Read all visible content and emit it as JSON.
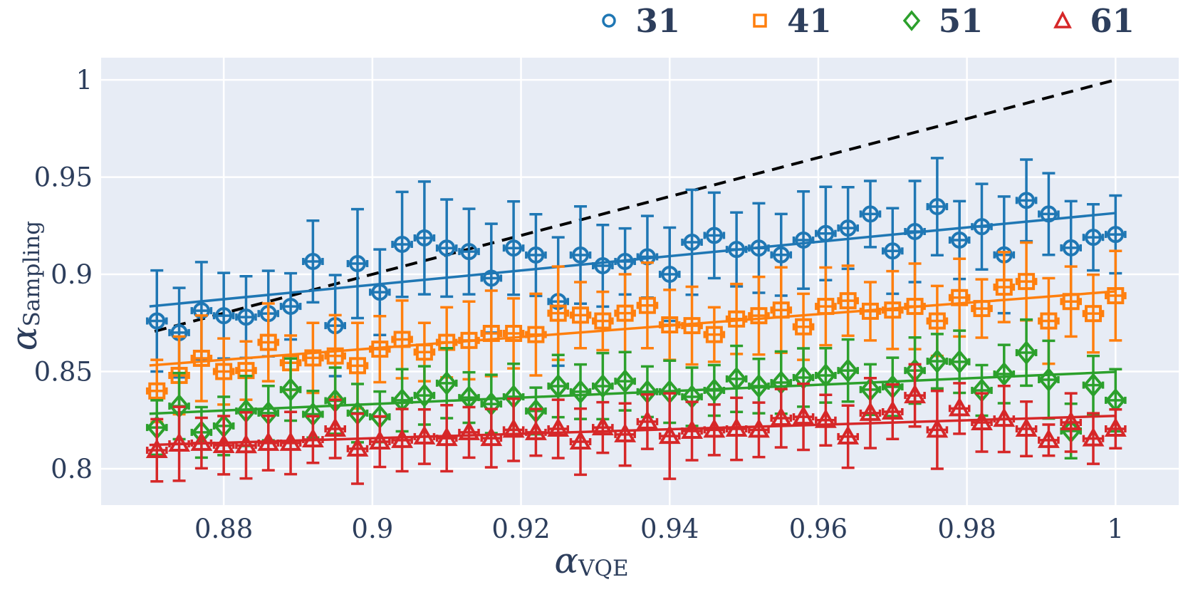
{
  "colors": {
    "series_blue": "#1f77b4",
    "series_orange": "#ff7f0e",
    "series_green": "#2ca02c",
    "series_red": "#d62728",
    "plot_background": "#e7ecf5",
    "gridline": "#ffffff",
    "text": "#2d3e5c",
    "identity_line": "#000000"
  },
  "chart_data": {
    "type": "scatter",
    "title": "",
    "xlabel": {
      "alpha": "α",
      "sub": "VQE"
    },
    "ylabel": {
      "alpha": "α",
      "sub": "Sampling"
    },
    "xlim": [
      0.8635,
      1.0085
    ],
    "ylim": [
      0.7813,
      1.0114
    ],
    "grid": true,
    "legend_position": "top-right-above-axes",
    "xticks": [
      0.88,
      0.9,
      0.92,
      0.94,
      0.96,
      0.98,
      1.0
    ],
    "xtick_labels": [
      "0.88",
      "0.9",
      "0.92",
      "0.94",
      "0.96",
      "0.98",
      "1"
    ],
    "yticks": [
      0.8,
      0.85,
      0.9,
      0.95,
      1.0
    ],
    "ytick_labels": [
      "0.8",
      "0.85",
      "0.9",
      "0.95",
      "1"
    ],
    "identity_line": {
      "style": "dashed",
      "x0": 0.8707,
      "y0": 0.8707,
      "x1": 1.0,
      "y1": 1.0
    },
    "x": [
      0.871,
      0.874,
      0.877,
      0.88,
      0.883,
      0.886,
      0.889,
      0.892,
      0.895,
      0.898,
      0.901,
      0.904,
      0.907,
      0.91,
      0.913,
      0.916,
      0.919,
      0.922,
      0.925,
      0.928,
      0.931,
      0.934,
      0.937,
      0.94,
      0.943,
      0.946,
      0.949,
      0.952,
      0.955,
      0.958,
      0.961,
      0.964,
      0.967,
      0.97,
      0.973,
      0.976,
      0.979,
      0.982,
      0.985,
      0.988,
      0.991,
      0.994,
      0.997,
      1.0
    ],
    "series": [
      {
        "name": "31",
        "marker": "circle",
        "color": "#1f77b4",
        "fit_line": {
          "x0": 0.87,
          "y0": 0.8835,
          "x1": 1.0,
          "y1": 0.9315
        },
        "y": [
          0.876,
          0.87,
          0.8813,
          0.8787,
          0.878,
          0.8798,
          0.8835,
          0.9066,
          0.8736,
          0.9055,
          0.8908,
          0.9154,
          0.9187,
          0.9135,
          0.9117,
          0.898,
          0.9135,
          0.9099,
          0.886,
          0.9099,
          0.9044,
          0.9066,
          0.909,
          0.9,
          0.9165,
          0.92,
          0.9128,
          0.9135,
          0.91,
          0.9176,
          0.921,
          0.9238,
          0.931,
          0.912,
          0.922,
          0.9348,
          0.9176,
          0.9245,
          0.91,
          0.938,
          0.931,
          0.9136,
          0.919,
          0.9205
        ],
        "yerr": [
          0.026,
          0.023,
          0.025,
          0.022,
          0.021,
          0.022,
          0.017,
          0.021,
          0.026,
          0.028,
          0.022,
          0.027,
          0.029,
          0.025,
          0.022,
          0.028,
          0.024,
          0.021,
          0.033,
          0.025,
          0.021,
          0.017,
          0.021,
          0.024,
          0.027,
          0.022,
          0.019,
          0.023,
          0.021,
          0.025,
          0.024,
          0.021,
          0.017,
          0.022,
          0.026,
          0.025,
          0.02,
          0.022,
          0.03,
          0.021,
          0.021,
          0.024,
          0.017,
          0.02
        ],
        "xerr": 0.0013
      },
      {
        "name": "41",
        "marker": "square",
        "color": "#ff7f0e",
        "fit_line": {
          "x0": 0.87,
          "y0": 0.8531,
          "x1": 1.0,
          "y1": 0.8912
        },
        "y": [
          0.84,
          0.848,
          0.8568,
          0.85,
          0.8505,
          0.865,
          0.8545,
          0.857,
          0.858,
          0.853,
          0.8615,
          0.8665,
          0.86,
          0.865,
          0.866,
          0.8696,
          0.8696,
          0.869,
          0.88,
          0.879,
          0.876,
          0.88,
          0.884,
          0.874,
          0.8736,
          0.869,
          0.877,
          0.8787,
          0.8816,
          0.873,
          0.8835,
          0.8864,
          0.881,
          0.8816,
          0.8835,
          0.876,
          0.888,
          0.8824,
          0.8934,
          0.8963,
          0.876,
          0.886,
          0.8798,
          0.889
        ],
        "yerr": [
          0.016,
          0.02,
          0.022,
          0.017,
          0.015,
          0.02,
          0.014,
          0.018,
          0.021,
          0.022,
          0.017,
          0.02,
          0.015,
          0.018,
          0.02,
          0.022,
          0.018,
          0.021,
          0.024,
          0.017,
          0.015,
          0.02,
          0.022,
          0.018,
          0.02,
          0.014,
          0.018,
          0.02,
          0.022,
          0.017,
          0.02,
          0.018,
          0.015,
          0.02,
          0.022,
          0.018,
          0.02,
          0.015,
          0.018,
          0.02,
          0.022,
          0.018,
          0.02,
          0.023
        ],
        "xerr": 0.0013
      },
      {
        "name": "51",
        "marker": "diamond",
        "color": "#2ca02c",
        "fit_line": {
          "x0": 0.87,
          "y0": 0.8283,
          "x1": 1.0,
          "y1": 0.8498
        },
        "y": [
          0.8212,
          0.8322,
          0.8187,
          0.822,
          0.8297,
          0.8286,
          0.8407,
          0.828,
          0.835,
          0.8286,
          0.8267,
          0.8352,
          0.8377,
          0.844,
          0.8366,
          0.8333,
          0.837,
          0.8297,
          0.8425,
          0.8396,
          0.8425,
          0.845,
          0.8396,
          0.8396,
          0.837,
          0.8403,
          0.8462,
          0.8425,
          0.8443,
          0.8469,
          0.848,
          0.8505,
          0.8407,
          0.8421,
          0.8505,
          0.8553,
          0.855,
          0.8403,
          0.8487,
          0.8597,
          0.8458,
          0.8194,
          0.843,
          0.8352
        ],
        "yerr": [
          0.014,
          0.017,
          0.013,
          0.015,
          0.018,
          0.014,
          0.016,
          0.012,
          0.017,
          0.015,
          0.013,
          0.016,
          0.015,
          0.018,
          0.013,
          0.015,
          0.017,
          0.012,
          0.016,
          0.014,
          0.017,
          0.015,
          0.013,
          0.016,
          0.015,
          0.013,
          0.017,
          0.014,
          0.016,
          0.015,
          0.014,
          0.016,
          0.013,
          0.015,
          0.017,
          0.014,
          0.016,
          0.013,
          0.015,
          0.017,
          0.02,
          0.014,
          0.015,
          0.016
        ],
        "xerr": 0.0013
      },
      {
        "name": "61",
        "marker": "triangle",
        "color": "#d62728",
        "fit_line": {
          "x0": 0.87,
          "y0": 0.8122,
          "x1": 1.0,
          "y1": 0.8272
        },
        "y": [
          0.8095,
          0.8128,
          0.8132,
          0.8121,
          0.812,
          0.8132,
          0.8132,
          0.815,
          0.8205,
          0.8103,
          0.8139,
          0.8147,
          0.8165,
          0.8157,
          0.8187,
          0.8157,
          0.82,
          0.8187,
          0.8205,
          0.8139,
          0.8212,
          0.8176,
          0.8242,
          0.8168,
          0.8194,
          0.82,
          0.8205,
          0.82,
          0.826,
          0.8267,
          0.825,
          0.8165,
          0.8286,
          0.8293,
          0.8377,
          0.82,
          0.831,
          0.8238,
          0.8256,
          0.8205,
          0.8147,
          0.8238,
          0.8155,
          0.8205
        ],
        "yerr": [
          0.016,
          0.019,
          0.013,
          0.015,
          0.017,
          0.014,
          0.016,
          0.012,
          0.015,
          0.018,
          0.013,
          0.016,
          0.014,
          0.017,
          0.013,
          0.015,
          0.016,
          0.012,
          0.015,
          0.017,
          0.013,
          0.016,
          0.014,
          0.022,
          0.015,
          0.013,
          0.016,
          0.014,
          0.015,
          0.017,
          0.013,
          0.016,
          0.018,
          0.014,
          0.016,
          0.02,
          0.013,
          0.015,
          0.017,
          0.014,
          0.008,
          0.015,
          0.013,
          0.01
        ],
        "xerr": 0.0013
      }
    ],
    "legend": {
      "entries": [
        {
          "label": "31",
          "marker": "circle",
          "color": "#1f77b4"
        },
        {
          "label": "41",
          "marker": "square",
          "color": "#ff7f0e"
        },
        {
          "label": "51",
          "marker": "diamond",
          "color": "#2ca02c"
        },
        {
          "label": "61",
          "marker": "triangle",
          "color": "#d62728"
        }
      ]
    }
  }
}
